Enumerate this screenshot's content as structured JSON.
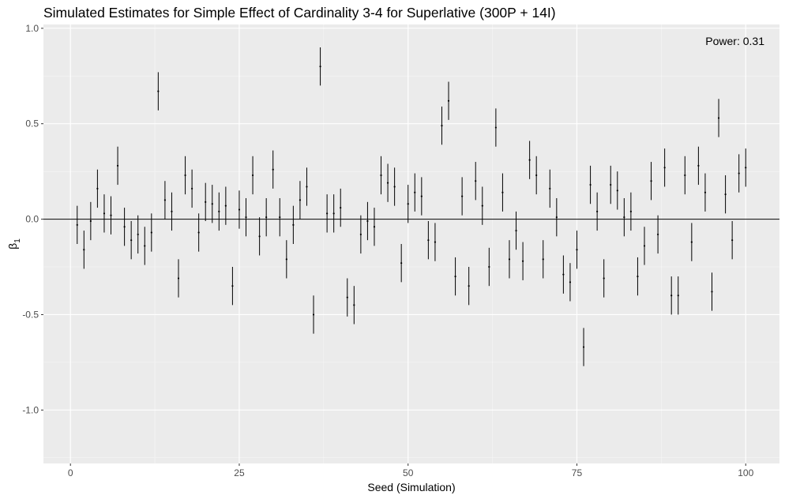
{
  "chart_data": {
    "type": "scatter",
    "title": "Simulated Estimates for Simple Effect of Cardinality 3-4 for Superlative (300P + 14I)",
    "xlabel": "Seed (Simulation)",
    "ylabel_main": "β",
    "ylabel_sub": "1",
    "xlim": [
      -4,
      105
    ],
    "ylim": [
      -1.28,
      1.02
    ],
    "x_ticks": [
      0,
      25,
      50,
      75,
      100
    ],
    "x_tick_labels": [
      "0",
      "25",
      "50",
      "75",
      "100"
    ],
    "y_ticks": [
      1.0,
      0.5,
      0.0,
      -0.5,
      -1.0
    ],
    "y_tick_labels": [
      "1.0",
      "0.5",
      "0.0",
      "-0.5",
      "-1.0"
    ],
    "reference_line_y": 0,
    "annotation": "Power:  0.31",
    "grid": true,
    "error_half_width": 0.1,
    "x": [
      1,
      2,
      3,
      4,
      5,
      6,
      7,
      8,
      9,
      10,
      11,
      12,
      13,
      14,
      15,
      16,
      17,
      18,
      19,
      20,
      21,
      22,
      23,
      24,
      25,
      26,
      27,
      28,
      29,
      30,
      31,
      32,
      33,
      34,
      35,
      36,
      37,
      38,
      39,
      40,
      41,
      42,
      43,
      44,
      45,
      46,
      47,
      48,
      49,
      50,
      51,
      52,
      53,
      54,
      55,
      56,
      57,
      58,
      59,
      60,
      61,
      62,
      63,
      64,
      65,
      66,
      67,
      68,
      69,
      70,
      71,
      72,
      73,
      74,
      75,
      76,
      77,
      78,
      79,
      80,
      81,
      82,
      83,
      84,
      85,
      86,
      87,
      88,
      89,
      90,
      91,
      92,
      93,
      94,
      95,
      96,
      97,
      98,
      99,
      100
    ],
    "estimate": [
      -0.03,
      -0.16,
      -0.01,
      0.16,
      0.03,
      0.02,
      0.28,
      -0.04,
      -0.11,
      -0.08,
      -0.14,
      -0.07,
      0.67,
      0.1,
      0.04,
      -0.31,
      0.23,
      0.16,
      -0.07,
      0.09,
      0.08,
      0.04,
      0.07,
      -0.35,
      0.05,
      0.01,
      0.23,
      -0.09,
      0.01,
      0.26,
      0.01,
      -0.21,
      -0.03,
      0.1,
      0.17,
      -0.5,
      0.8,
      0.03,
      0.03,
      0.06,
      -0.41,
      -0.45,
      -0.08,
      -0.01,
      -0.04,
      0.23,
      0.19,
      0.17,
      -0.23,
      0.08,
      0.14,
      0.12,
      -0.11,
      -0.12,
      0.49,
      0.62,
      -0.3,
      0.12,
      -0.35,
      0.2,
      0.07,
      -0.25,
      0.48,
      0.14,
      -0.21,
      -0.06,
      -0.22,
      0.31,
      0.23,
      -0.21,
      0.16,
      0.01,
      -0.29,
      -0.33,
      -0.16,
      -0.67,
      0.18,
      0.04,
      -0.31,
      0.18,
      0.15,
      0.01,
      0.04,
      -0.3,
      -0.14,
      0.2,
      -0.08,
      0.27,
      -0.4,
      -0.4,
      0.23,
      -0.12,
      0.28,
      0.14,
      -0.38,
      0.53,
      0.13,
      -0.11,
      0.24,
      0.27
    ]
  }
}
